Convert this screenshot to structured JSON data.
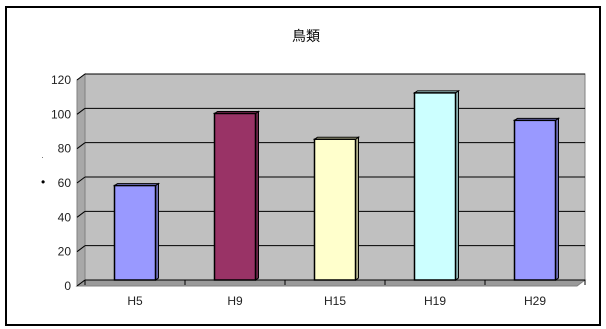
{
  "chart_data": {
    "type": "bar",
    "title": "鳥類",
    "categories": [
      "H5",
      "H9",
      "H15",
      "H19",
      "H29"
    ],
    "values": [
      55,
      97,
      82,
      109,
      93
    ],
    "colors": [
      "#9999ff",
      "#993366",
      "#ffffcc",
      "#ccffff",
      "#9999ff"
    ],
    "ylim": [
      0,
      120
    ],
    "yticks": [
      0,
      20,
      40,
      60,
      80,
      100,
      120
    ],
    "grid": true,
    "plot_background": "#c0c0c0",
    "bar_outline": "#000000"
  }
}
